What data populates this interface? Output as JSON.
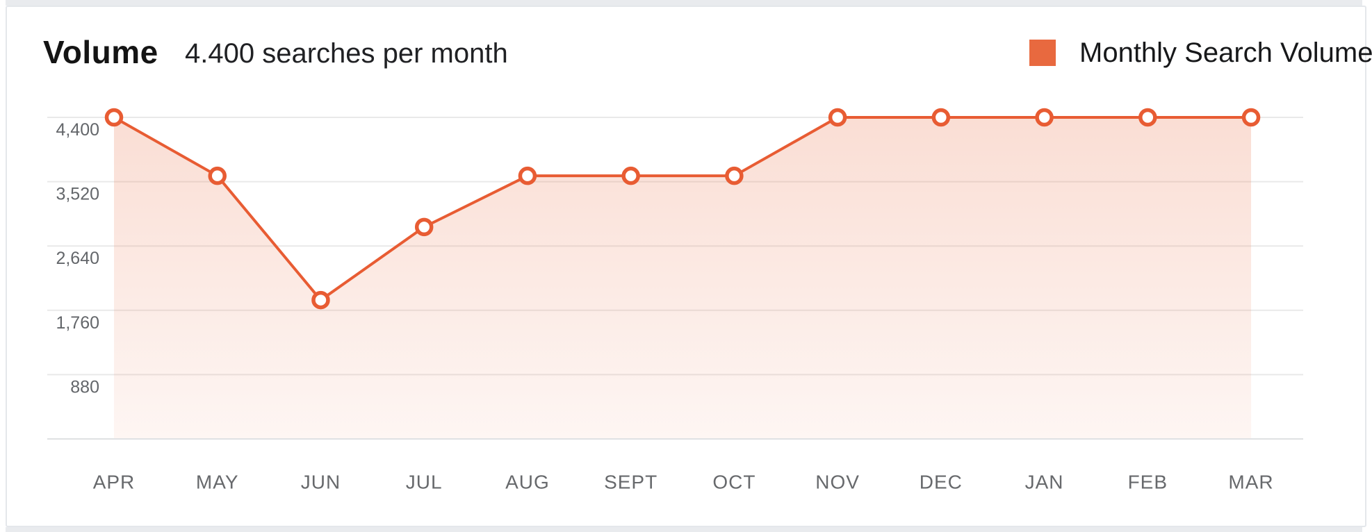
{
  "header": {
    "title": "Volume",
    "subtitle": "4.400 searches per month"
  },
  "legend": {
    "label": "Monthly Search Volume",
    "color": "#E8693F"
  },
  "colors": {
    "accent_line": "#E85C33",
    "accent_fill": "#E8683C",
    "grid_line": "#E9E9E9",
    "axis_line": "#DFE1E3",
    "tick_label_text": "#63666A",
    "month_label_text": "#67696C",
    "title_text": "#141414",
    "card_border": "#E4E7EB",
    "page_strip": "#E9EBEE"
  },
  "chart_data": {
    "type": "area",
    "title": "Volume",
    "series_name": "Monthly Search Volume",
    "categories": [
      "APR",
      "MAY",
      "JUN",
      "JUL",
      "AUG",
      "SEPT",
      "OCT",
      "NOV",
      "DEC",
      "JAN",
      "FEB",
      "MAR"
    ],
    "values": [
      4400,
      3600,
      1900,
      2900,
      3600,
      3600,
      3600,
      4400,
      4400,
      4400,
      4400,
      4400
    ],
    "xlabel": "",
    "ylabel": "",
    "ylim": [
      0,
      4400
    ],
    "ytick_values": [
      4400,
      3520,
      2640,
      1760,
      880
    ],
    "ytick_labels": [
      "4,400",
      "3,520",
      "2,640",
      "1,760",
      "880"
    ],
    "grid": true,
    "markers": true,
    "legend_position": "top-right"
  }
}
